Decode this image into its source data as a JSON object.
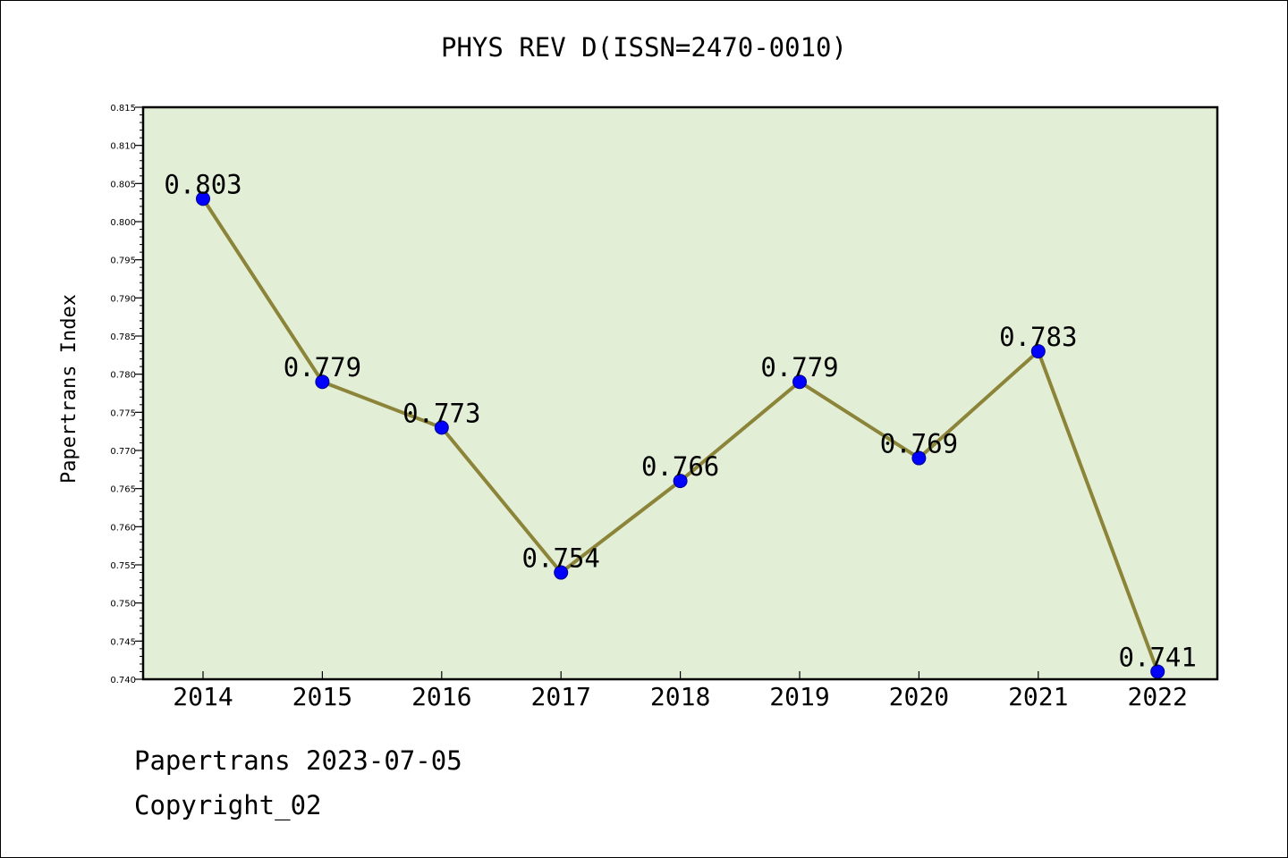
{
  "header": {
    "title": "PHYS REV D(ISSN=2470-0010)"
  },
  "footer": {
    "date_line": "Papertrans 2023-07-05",
    "copyright": "Copyright_02"
  },
  "colors": {
    "plot_background": "#e2efd6",
    "line": "#8b8439",
    "marker_fill": "#0000ff",
    "marker_edge": "#00008b",
    "axis": "#000000"
  },
  "chart_data": {
    "type": "line",
    "title": "PHYS REV D(ISSN=2470-0010)",
    "xlabel": "",
    "ylabel": "Papertrans Index",
    "categories": [
      "2014",
      "2015",
      "2016",
      "2017",
      "2018",
      "2019",
      "2020",
      "2021",
      "2022"
    ],
    "series": [
      {
        "values": [
          0.803,
          0.779,
          0.773,
          0.754,
          0.766,
          0.779,
          0.769,
          0.783,
          0.741
        ]
      }
    ],
    "data_labels": [
      "0.803",
      "0.779",
      "0.773",
      "0.754",
      "0.766",
      "0.779",
      "0.769",
      "0.783",
      "0.741"
    ],
    "ylim": [
      0.74,
      0.815
    ],
    "yticks": [
      "0.740",
      "0.745",
      "0.750",
      "0.755",
      "0.760",
      "0.765",
      "0.770",
      "0.775",
      "0.780",
      "0.785",
      "0.790",
      "0.795",
      "0.800",
      "0.805",
      "0.810",
      "0.815"
    ],
    "grid": false,
    "legend": "none"
  }
}
